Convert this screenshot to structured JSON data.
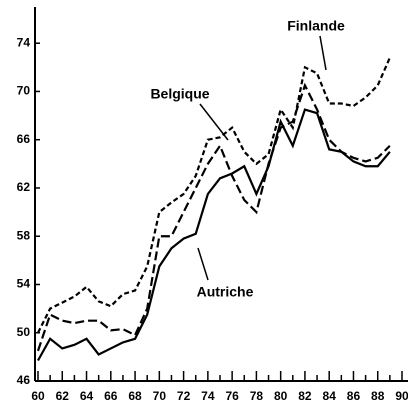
{
  "chart_data": {
    "type": "line",
    "x": [
      60,
      61,
      62,
      63,
      64,
      65,
      66,
      67,
      68,
      69,
      70,
      71,
      72,
      73,
      74,
      75,
      76,
      77,
      78,
      79,
      80,
      81,
      82,
      83,
      84,
      85,
      86,
      87,
      88,
      89
    ],
    "series": [
      {
        "name": "Finlande",
        "color": "#000000",
        "values": [
          50,
          52,
          52.5,
          53,
          53.8,
          52.6,
          52.2,
          53.2,
          53.5,
          55.5,
          60,
          60.8,
          61.5,
          63,
          66,
          66.2,
          67,
          65,
          64,
          64.8,
          68.5,
          67,
          72,
          71.5,
          69,
          69,
          68.8,
          69.5,
          70.5,
          72.8
        ]
      },
      {
        "name": "Belgique",
        "color": "#000000",
        "values": [
          48.5,
          51.5,
          51,
          50.8,
          51,
          51,
          50.2,
          50.3,
          49.8,
          52,
          58,
          58,
          60,
          62,
          64,
          65.5,
          63,
          61,
          60,
          64,
          67,
          67.5,
          70.5,
          68.5,
          66,
          65,
          64.5,
          64.2,
          64.5,
          65.5
        ]
      },
      {
        "name": "Autriche",
        "color": "#000000",
        "values": [
          47.7,
          49.5,
          48.7,
          49,
          49.5,
          48.2,
          48.7,
          49.2,
          49.5,
          51.5,
          55.5,
          57,
          57.8,
          58.2,
          61.5,
          62.8,
          63.2,
          63.8,
          61.5,
          63.8,
          67.5,
          65.5,
          68.5,
          68.2,
          65.2,
          65,
          64.2,
          63.8,
          63.8,
          65
        ]
      }
    ],
    "xlim": [
      60,
      90
    ],
    "xticks": [
      60,
      62,
      64,
      66,
      68,
      70,
      72,
      74,
      76,
      78,
      80,
      82,
      84,
      86,
      88,
      90
    ],
    "ylim": [
      46,
      77
    ],
    "yticks": [
      46,
      50,
      54,
      58,
      62,
      66,
      70,
      74
    ],
    "grid": false
  }
}
